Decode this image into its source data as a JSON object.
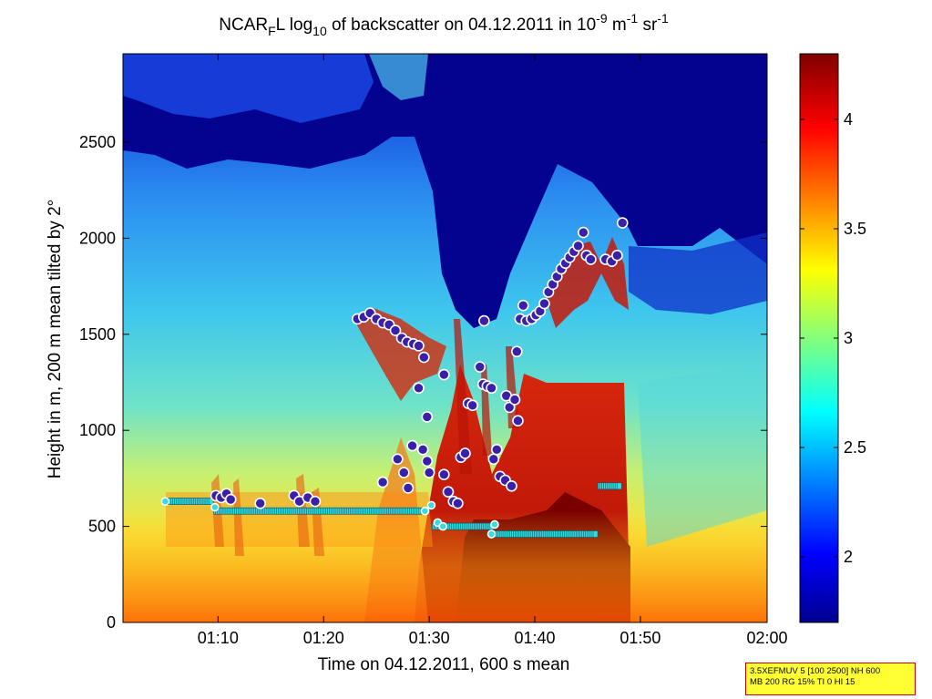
{
  "title": {
    "prefix": "NCAR",
    "sub1": "F",
    "mid1": "L log",
    "sub2": "10",
    "mid2": " of backscatter on 04.12.2011 in 10",
    "sup1": "-9",
    "mid3": " m",
    "sup2": "-1",
    "mid4": " sr",
    "sup3": "-1"
  },
  "xlabel": "Time on 04.12.2011, 600 s mean",
  "ylabel": "Height in m, 200 m mean tilted by 2°",
  "info_box": {
    "line1": "3.5XEFMUV 5 [100 2500] NH 600",
    "line2": "MB 200 RG 15% TI 0 HI 15"
  },
  "colors": {
    "colormap": "jet",
    "marker_fill_circle": "#3a1fa8",
    "marker_edge_circle": "#ffffff",
    "marker_fill_square": "#33dddd",
    "info_box_bg": "#ffff33",
    "info_box_border": "#cc0000"
  },
  "chart_data": {
    "type": "heatmap",
    "title": "NCAR_F L log_10 of backscatter on 04.12.2011 in 10^-9 m^-1 sr^-1",
    "xlabel": "Time on 04.12.2011, 600 s mean",
    "ylabel": "Height in m, 200 m mean tilted by 2°",
    "x_unit": "minutes after 01:00",
    "xlim": [
      1,
      62
    ],
    "ylim": [
      0,
      2960
    ],
    "x_ticks": [
      10,
      20,
      30,
      40,
      50,
      62
    ],
    "x_tick_labels": [
      "01:10",
      "01:20",
      "01:30",
      "01:40",
      "01:50",
      "02:00"
    ],
    "y_ticks": [
      0,
      500,
      1000,
      1500,
      2000,
      2500
    ],
    "y_tick_labels": [
      "0",
      "500",
      "1000",
      "1500",
      "2000",
      "2500"
    ],
    "colorbar": {
      "range": [
        1.7,
        4.3
      ],
      "ticks": [
        2,
        2.5,
        3,
        3.5,
        4
      ],
      "tick_labels": [
        "2",
        "2.5",
        "3",
        "3.5",
        "4"
      ]
    },
    "cloud_top_markers": [
      [
        9.8,
        660
      ],
      [
        10.3,
        650
      ],
      [
        10.8,
        670
      ],
      [
        11.2,
        640
      ],
      [
        14.0,
        620
      ],
      [
        17.2,
        660
      ],
      [
        17.7,
        630
      ],
      [
        18.5,
        650
      ],
      [
        19.2,
        630
      ],
      [
        23.2,
        1580
      ],
      [
        23.8,
        1590
      ],
      [
        24.4,
        1610
      ],
      [
        25.0,
        1580
      ],
      [
        25.6,
        1560
      ],
      [
        26.2,
        1550
      ],
      [
        26.8,
        1520
      ],
      [
        27.4,
        1480
      ],
      [
        27.9,
        1460
      ],
      [
        28.5,
        1450
      ],
      [
        29.0,
        1440
      ],
      [
        29.5,
        1380
      ],
      [
        29.0,
        1220
      ],
      [
        29.8,
        1070
      ],
      [
        25.6,
        730
      ],
      [
        27.0,
        850
      ],
      [
        27.6,
        780
      ],
      [
        28.0,
        700
      ],
      [
        28.4,
        920
      ],
      [
        29.4,
        900
      ],
      [
        29.8,
        840
      ],
      [
        30.0,
        780
      ],
      [
        31.4,
        770
      ],
      [
        31.8,
        680
      ],
      [
        32.3,
        630
      ],
      [
        32.7,
        620
      ],
      [
        31.4,
        1290
      ],
      [
        33.0,
        860
      ],
      [
        33.4,
        880
      ],
      [
        33.7,
        1140
      ],
      [
        34.1,
        1130
      ],
      [
        34.8,
        1330
      ],
      [
        35.1,
        1240
      ],
      [
        35.2,
        1570
      ],
      [
        35.5,
        1230
      ],
      [
        35.9,
        1220
      ],
      [
        36.1,
        850
      ],
      [
        36.4,
        900
      ],
      [
        36.7,
        760
      ],
      [
        37.2,
        740
      ],
      [
        37.8,
        710
      ],
      [
        37.3,
        1180
      ],
      [
        37.6,
        1120
      ],
      [
        38.1,
        1160
      ],
      [
        38.4,
        1050
      ],
      [
        38.3,
        1410
      ],
      [
        38.6,
        1580
      ],
      [
        38.9,
        1650
      ],
      [
        39.2,
        1570
      ],
      [
        39.7,
        1580
      ],
      [
        40.1,
        1600
      ],
      [
        40.5,
        1620
      ],
      [
        40.9,
        1660
      ],
      [
        41.3,
        1720
      ],
      [
        41.7,
        1760
      ],
      [
        42.1,
        1800
      ],
      [
        42.5,
        1840
      ],
      [
        42.9,
        1870
      ],
      [
        43.3,
        1900
      ],
      [
        43.7,
        1930
      ],
      [
        44.1,
        1960
      ],
      [
        44.6,
        2030
      ],
      [
        44.9,
        1910
      ],
      [
        45.3,
        1890
      ],
      [
        46.7,
        1890
      ],
      [
        47.3,
        1880
      ],
      [
        47.8,
        1910
      ],
      [
        48.3,
        2080
      ]
    ],
    "cloud_base_markers": [
      [
        5.0,
        630
      ],
      [
        9.7,
        600
      ],
      [
        29.6,
        580
      ],
      [
        30.2,
        610
      ],
      [
        30.8,
        520
      ],
      [
        31.3,
        500
      ],
      [
        36.2,
        510
      ],
      [
        35.9,
        460
      ]
    ],
    "boundary_layer_segments": [
      {
        "x": [
          5.2,
          9.5
        ],
        "y": 630
      },
      {
        "x": [
          9.8,
          29.5
        ],
        "y": 580
      },
      {
        "x": [
          30.5,
          36.0
        ],
        "y": 500
      },
      {
        "x": [
          36.2,
          45.9
        ],
        "y": 460
      },
      {
        "x": [
          46.2,
          48.0
        ],
        "y": 710
      }
    ]
  }
}
